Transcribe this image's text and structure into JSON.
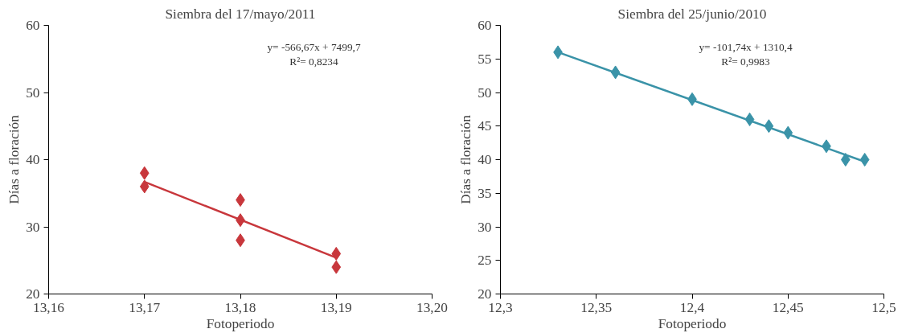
{
  "chart_data": [
    {
      "type": "scatter",
      "title": "Siembra del 17/mayo/2011",
      "xlabel": "Fotoperiodo",
      "ylabel": "Días a floración",
      "grid": false,
      "annotations": [
        "y= -566,67x + 7499,7",
        "R²= 0,8234"
      ],
      "xlim": [
        13.16,
        13.2
      ],
      "xticks": [
        {
          "value": 13.16,
          "label": "13,16"
        },
        {
          "value": 13.17,
          "label": "13,17"
        },
        {
          "value": 13.18,
          "label": "13,18"
        },
        {
          "value": 13.19,
          "label": "13,19"
        },
        {
          "value": 13.2,
          "label": "13,20"
        }
      ],
      "ylim": [
        20,
        60
      ],
      "yticks": [
        20,
        30,
        40,
        50,
        60
      ],
      "series": [
        {
          "marker": "diamond",
          "color": "#c8373c",
          "x": [
            13.17,
            13.17,
            13.18,
            13.18,
            13.18,
            13.19,
            13.19
          ],
          "values": [
            38,
            36,
            34,
            31,
            28,
            26,
            24
          ]
        },
        {
          "type": "line",
          "color": "#c8373c",
          "x": [
            13.17,
            13.19
          ],
          "values": [
            36.7,
            25.4
          ]
        }
      ]
    },
    {
      "type": "scatter",
      "title": "Siembra del 25/junio/2010",
      "xlabel": "Fotoperiodo",
      "ylabel": "Días a floración",
      "grid": false,
      "annotations": [
        "y= -101,74x + 1310,4",
        "R²= 0,9983"
      ],
      "xlim": [
        12.3,
        12.5
      ],
      "xticks": [
        {
          "value": 12.3,
          "label": "12,3"
        },
        {
          "value": 12.35,
          "label": "12,35"
        },
        {
          "value": 12.4,
          "label": "12,4"
        },
        {
          "value": 12.45,
          "label": "12,45"
        },
        {
          "value": 12.5,
          "label": "12,5"
        }
      ],
      "ylim": [
        20,
        60
      ],
      "yticks": [
        20,
        25,
        30,
        35,
        40,
        45,
        50,
        55,
        60
      ],
      "series": [
        {
          "marker": "diamond",
          "color": "#3a93a8",
          "x": [
            12.33,
            12.36,
            12.4,
            12.43,
            12.44,
            12.45,
            12.47,
            12.48,
            12.49
          ],
          "values": [
            56,
            53,
            49,
            46,
            45,
            44,
            42,
            40,
            40
          ]
        },
        {
          "type": "line",
          "color": "#3a93a8",
          "x": [
            12.33,
            12.49
          ],
          "values": [
            56.0,
            39.7
          ]
        }
      ]
    }
  ]
}
